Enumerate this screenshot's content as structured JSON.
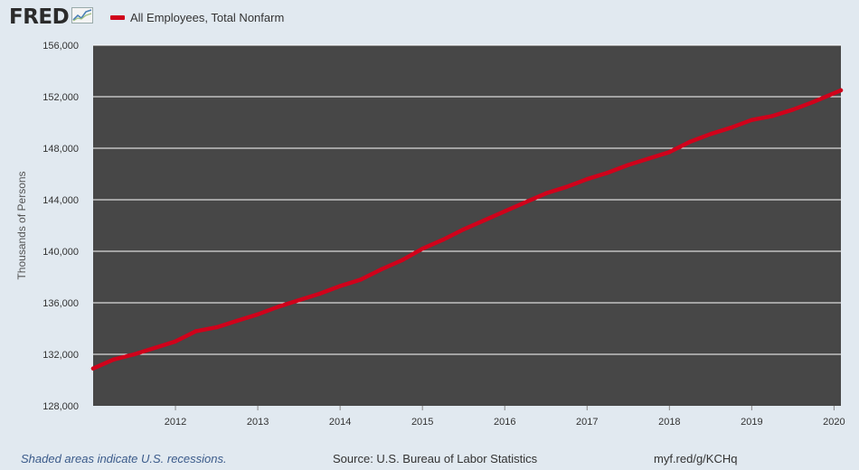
{
  "header": {
    "logo_text": "FRED",
    "logo_icon": "fred-graph-icon",
    "legend_label": "All Employees, Total Nonfarm"
  },
  "colors": {
    "background": "#e1e9f0",
    "plot_bg": "#474747",
    "line": "#d0021b",
    "grid": "#ffffff"
  },
  "chart_data": {
    "type": "line",
    "title": "",
    "xlabel": "",
    "ylabel": "Thousands of Persons",
    "ylim": [
      128000,
      156000
    ],
    "xlim": [
      "2011-01",
      "2020-02"
    ],
    "yticks": [
      128000,
      132000,
      136000,
      140000,
      144000,
      148000,
      152000,
      156000
    ],
    "ytick_labels": [
      "128,000",
      "132,000",
      "136,000",
      "140,000",
      "144,000",
      "148,000",
      "152,000",
      "156,000"
    ],
    "xticks": [
      "2012",
      "2013",
      "2014",
      "2015",
      "2016",
      "2017",
      "2018",
      "2019",
      "2020"
    ],
    "grid": true,
    "legend_position": "top-left",
    "series": [
      {
        "name": "All Employees, Total Nonfarm",
        "x": [
          "2011-01",
          "2011-04",
          "2011-07",
          "2011-10",
          "2012-01",
          "2012-04",
          "2012-07",
          "2012-10",
          "2013-01",
          "2013-04",
          "2013-07",
          "2013-10",
          "2014-01",
          "2014-04",
          "2014-07",
          "2014-10",
          "2015-01",
          "2015-04",
          "2015-07",
          "2015-10",
          "2016-01",
          "2016-04",
          "2016-07",
          "2016-10",
          "2017-01",
          "2017-04",
          "2017-07",
          "2017-10",
          "2018-01",
          "2018-04",
          "2018-07",
          "2018-10",
          "2019-01",
          "2019-04",
          "2019-07",
          "2019-10",
          "2020-02"
        ],
        "values": [
          130900,
          131600,
          132000,
          132500,
          133000,
          133800,
          134100,
          134600,
          135100,
          135700,
          136200,
          136700,
          137300,
          137800,
          138600,
          139300,
          140200,
          140900,
          141700,
          142400,
          143100,
          143800,
          144500,
          145000,
          145600,
          146100,
          146700,
          147200,
          147700,
          148500,
          149100,
          149600,
          150200,
          150500,
          151000,
          151600,
          152500
        ]
      }
    ]
  },
  "footer": {
    "recession_note": "Shaded areas indicate U.S. recessions.",
    "source": "Source: U.S. Bureau of Labor Statistics",
    "short_url": "myf.red/g/KCHq"
  }
}
